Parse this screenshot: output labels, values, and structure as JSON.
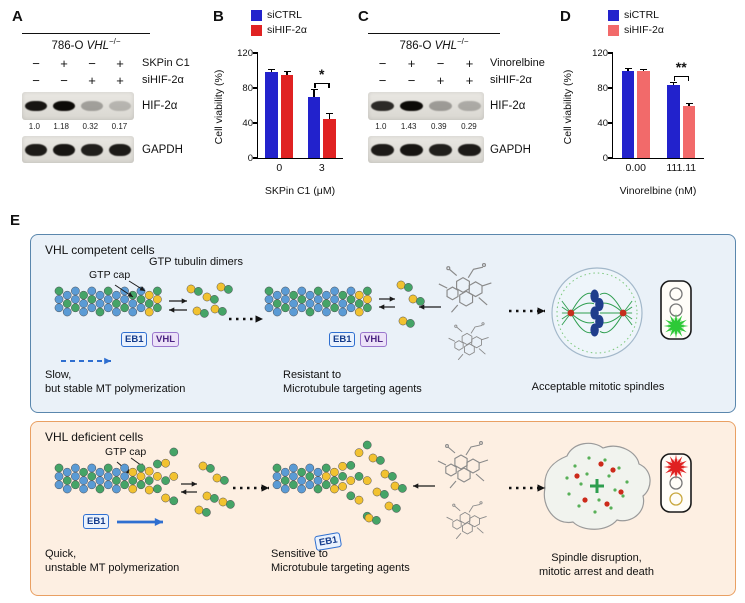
{
  "panel_labels": {
    "a": "A",
    "b": "B",
    "c": "C",
    "d": "D",
    "e": "E"
  },
  "panel_a": {
    "cell_line": {
      "prefix": "786-O ",
      "gene": "VHL",
      "sup": "−/−"
    },
    "rows": [
      {
        "label": "SKPin C1",
        "signs": [
          "−",
          "+",
          "−",
          "+"
        ]
      },
      {
        "label": "siHIF-2α",
        "signs": [
          "−",
          "−",
          "+",
          "+"
        ]
      }
    ],
    "blot1_label": "HIF-2α",
    "blot1_values": [
      "1.0",
      "1.18",
      "0.32",
      "0.17"
    ],
    "blot1_intensities": [
      0.95,
      1,
      0.3,
      0.2
    ],
    "blot2_label": "GAPDH",
    "blot2_intensities": [
      0.92,
      0.95,
      0.9,
      0.92
    ]
  },
  "panel_c": {
    "cell_line": {
      "prefix": "786-O ",
      "gene": "VHL",
      "sup": "−/−"
    },
    "rows": [
      {
        "label": "Vinorelbine",
        "signs": [
          "−",
          "+",
          "−",
          "+"
        ]
      },
      {
        "label": "siHIF-2α",
        "signs": [
          "−",
          "−",
          "+",
          "+"
        ]
      }
    ],
    "blot1_label": "HIF-2α",
    "blot1_values": [
      "1.0",
      "1.43",
      "0.39",
      "0.29"
    ],
    "blot1_intensities": [
      0.85,
      1,
      0.32,
      0.25
    ],
    "blot2_label": "GAPDH",
    "blot2_intensities": [
      0.92,
      0.95,
      0.9,
      0.92
    ]
  },
  "chart_data": [
    {
      "id": "B",
      "type": "bar",
      "ylabel": "Cell viability (%)",
      "xlabel": "SKPin C1 (μM)",
      "ylim": [
        0,
        120
      ],
      "yticks": [
        0,
        40,
        80,
        120
      ],
      "grid": false,
      "legend_position": "top",
      "categories": [
        "0",
        "3"
      ],
      "series": [
        {
          "name": "siCTRL",
          "color": "#2222cc",
          "values": [
            98,
            70
          ],
          "errors": [
            3,
            8
          ]
        },
        {
          "name": "siHIF-2α",
          "color": "#e02222",
          "values": [
            95,
            45
          ],
          "errors": [
            4,
            6
          ]
        }
      ],
      "significance": {
        "category": "3",
        "label": "*"
      }
    },
    {
      "id": "D",
      "type": "bar",
      "ylabel": "Cell viability (%)",
      "xlabel": "Vinorelbine (nM)",
      "ylim": [
        0,
        120
      ],
      "yticks": [
        0,
        40,
        80,
        120
      ],
      "grid": false,
      "legend_position": "top",
      "categories": [
        "0.00",
        "111.11"
      ],
      "series": [
        {
          "name": "siCTRL",
          "color": "#2222cc",
          "values": [
            100,
            83
          ],
          "errors": [
            2,
            3
          ]
        },
        {
          "name": "siHIF-2α",
          "color": "#f26a6a",
          "values": [
            99,
            60
          ],
          "errors": [
            2,
            2
          ]
        }
      ],
      "significance": {
        "category": "111.11",
        "label": "**"
      }
    }
  ],
  "diagram": {
    "competent": {
      "title": "VHL competent cells",
      "dimers_label": "GTP tubulin dimers",
      "cap_label": "GTP cap",
      "eb1_label": "EB1",
      "vhl_label": "VHL",
      "polymerization_line1": "Slow,",
      "polymerization_line2": "but stable MT polymerization",
      "agents_line1": "Resistant to",
      "agents_line2": "Microtubule targeting agents",
      "outcome": "Acceptable mitotic spindles"
    },
    "deficient": {
      "title": "VHL deficient cells",
      "cap_label": "GTP cap",
      "eb1_label": "EB1",
      "polymerization_line1": "Quick,",
      "polymerization_line2": "unstable MT polymerization",
      "agents_line1": "Sensitive to",
      "agents_line2": "Microtubule targeting agents",
      "outcome_line1": "Spindle disruption,",
      "outcome_line2": "mitotic arrest and death"
    },
    "colors": {
      "tubulin_blue": "#5b9bd5",
      "tubulin_green": "#45a467",
      "gtp_yellow": "#f2c230",
      "eb1_blue": "#2f6fd0",
      "go_green": "#2dc937",
      "stop_red": "#e02020"
    }
  }
}
